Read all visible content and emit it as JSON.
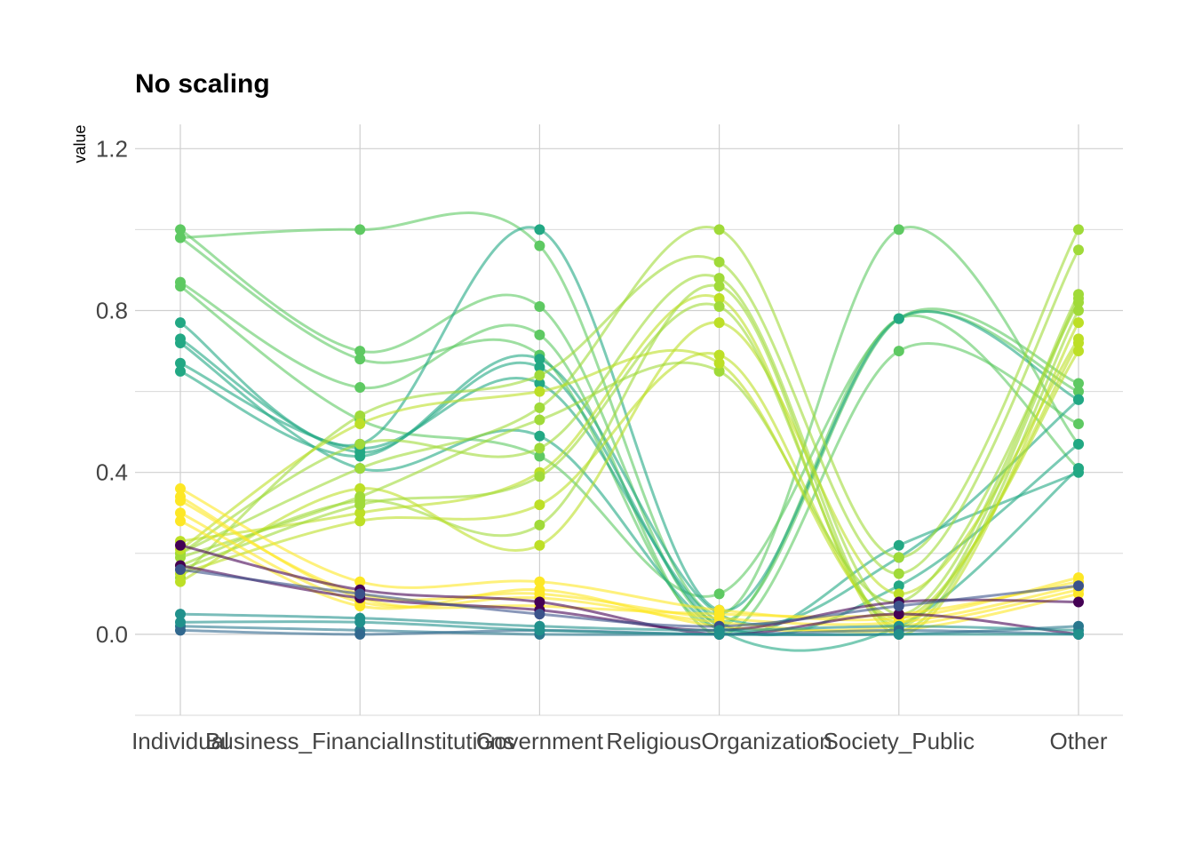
{
  "chart_data": {
    "type": "parallel",
    "title": "No scaling",
    "y_label": "value",
    "categories": [
      "Individual",
      "Business_FinancialInstitutions",
      "Government",
      "ReligiousOrganization",
      "Society_Public",
      "Other"
    ],
    "ylim": [
      -0.2,
      1.26
    ],
    "yticks": [
      {
        "value": 0,
        "label": "0.0"
      },
      0.4,
      0.8,
      1.2
    ],
    "minor_yticks": [
      -0.2,
      0.2,
      0.6,
      1.0
    ],
    "grid": true,
    "smooth": true,
    "series": [
      {
        "color": "#5ec962",
        "values": [
          0.98,
          1.0,
          0.96,
          0.05,
          1.0,
          0.47
        ]
      },
      {
        "color": "#5ec962",
        "values": [
          1.0,
          0.7,
          0.81,
          0.03,
          0.78,
          0.62
        ]
      },
      {
        "color": "#5ec962",
        "values": [
          0.87,
          0.61,
          0.74,
          0.0,
          0.7,
          0.52
        ]
      },
      {
        "color": "#5ec962",
        "values": [
          0.86,
          0.53,
          0.44,
          0.1,
          0.78,
          0.6
        ]
      },
      {
        "color": "#5ec962",
        "values": [
          0.98,
          0.68,
          0.69,
          0.02,
          0.78,
          0.41
        ]
      },
      {
        "color": "#22a884",
        "values": [
          0.77,
          0.47,
          1.0,
          0.06,
          0.78,
          0.58
        ]
      },
      {
        "color": "#22a884",
        "values": [
          0.73,
          0.45,
          0.66,
          0.02,
          0.22,
          0.4
        ]
      },
      {
        "color": "#22a884",
        "values": [
          0.67,
          0.46,
          0.62,
          0.03,
          0.12,
          0.47
        ]
      },
      {
        "color": "#22a884",
        "values": [
          0.72,
          0.41,
          0.49,
          0.01,
          0.02,
          0.41
        ]
      },
      {
        "color": "#22a884",
        "values": [
          0.65,
          0.44,
          0.68,
          0.05,
          0.19,
          0.58
        ]
      },
      {
        "color": "#a0da39",
        "values": [
          0.2,
          0.41,
          0.56,
          1.0,
          0.19,
          1.0
        ]
      },
      {
        "color": "#a0da39",
        "values": [
          0.14,
          0.54,
          0.64,
          0.92,
          0.15,
          0.95
        ]
      },
      {
        "color": "#a0da39",
        "values": [
          0.2,
          0.47,
          0.46,
          0.88,
          0.05,
          0.84
        ]
      },
      {
        "color": "#a0da39",
        "values": [
          0.17,
          0.33,
          0.27,
          0.86,
          0.01,
          0.8
        ]
      },
      {
        "color": "#bddf26",
        "values": [
          0.13,
          0.36,
          0.22,
          0.77,
          0.1,
          0.73
        ]
      },
      {
        "color": "#bddf26",
        "values": [
          0.23,
          0.3,
          0.4,
          0.83,
          0.0,
          0.77
        ]
      },
      {
        "color": "#bddf26",
        "values": [
          0.15,
          0.28,
          0.32,
          0.69,
          0.03,
          0.72
        ]
      },
      {
        "color": "#a0da39",
        "values": [
          0.19,
          0.34,
          0.53,
          0.65,
          0.08,
          0.82
        ]
      },
      {
        "color": "#bddf26",
        "values": [
          0.21,
          0.52,
          0.6,
          0.67,
          0.04,
          0.7
        ]
      },
      {
        "color": "#a0da39",
        "values": [
          0.16,
          0.32,
          0.39,
          0.81,
          0.02,
          0.83
        ]
      },
      {
        "color": "#fde725",
        "values": [
          0.36,
          0.13,
          0.13,
          0.06,
          0.04,
          0.14
        ]
      },
      {
        "color": "#fde725",
        "values": [
          0.33,
          0.1,
          0.1,
          0.04,
          0.03,
          0.12
        ]
      },
      {
        "color": "#fde725",
        "values": [
          0.3,
          0.08,
          0.09,
          0.03,
          0.01,
          0.1
        ]
      },
      {
        "color": "#fde725",
        "values": [
          0.28,
          0.07,
          0.11,
          0.02,
          0.02,
          0.11
        ]
      },
      {
        "color": "#fde725",
        "values": [
          0.34,
          0.09,
          0.07,
          0.05,
          0.05,
          0.13
        ]
      },
      {
        "color": "#440154",
        "values": [
          0.17,
          0.09,
          0.06,
          0.01,
          0.08,
          0.08
        ]
      },
      {
        "color": "#440154",
        "values": [
          0.22,
          0.11,
          0.08,
          0.0,
          0.05,
          0.0
        ]
      },
      {
        "color": "#3b528b",
        "values": [
          0.16,
          0.1,
          0.05,
          0.02,
          0.07,
          0.12
        ]
      },
      {
        "color": "#21918c",
        "values": [
          0.05,
          0.04,
          0.02,
          0.01,
          0.02,
          0.01
        ]
      },
      {
        "color": "#2a788e",
        "values": [
          0.02,
          0.01,
          0.0,
          0.0,
          0.0,
          0.02
        ]
      },
      {
        "color": "#31688e",
        "values": [
          0.01,
          0.0,
          0.01,
          0.0,
          0.01,
          0.0
        ]
      },
      {
        "color": "#21918c",
        "values": [
          0.03,
          0.03,
          0.01,
          0.0,
          0.0,
          0.0
        ]
      }
    ]
  }
}
